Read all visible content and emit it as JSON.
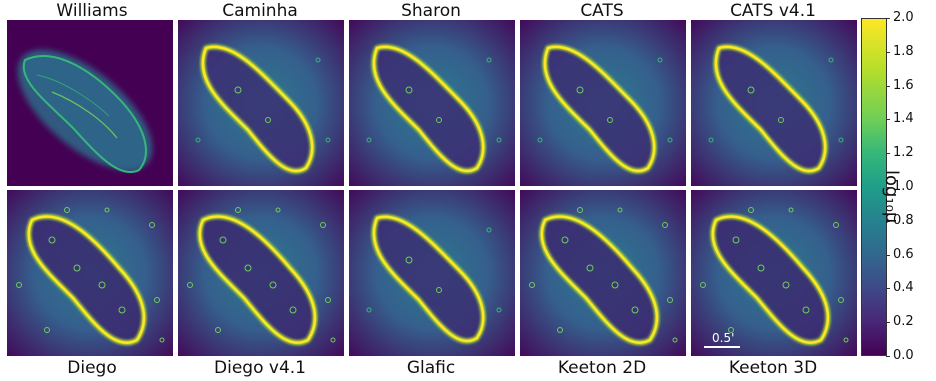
{
  "panels_top": [
    {
      "name": "Williams"
    },
    {
      "name": "Caminha"
    },
    {
      "name": "Sharon"
    },
    {
      "name": "CATS"
    },
    {
      "name": "CATS v4.1"
    }
  ],
  "panels_bottom": [
    {
      "name": "Diego"
    },
    {
      "name": "Diego v4.1"
    },
    {
      "name": "Glafic"
    },
    {
      "name": "Keeton 2D"
    },
    {
      "name": "Keeton 3D"
    }
  ],
  "colorbar": {
    "label": "log₁₀μ",
    "ticks": [
      "0.0",
      "0.2",
      "0.4",
      "0.6",
      "0.8",
      "1.0",
      "1.2",
      "1.4",
      "1.6",
      "1.8",
      "2.0"
    ],
    "colormap": [
      "#440154",
      "#3e4a89",
      "#26828e",
      "#35b779",
      "#fde725"
    ]
  },
  "scalebar": {
    "label": "0.5'"
  }
}
